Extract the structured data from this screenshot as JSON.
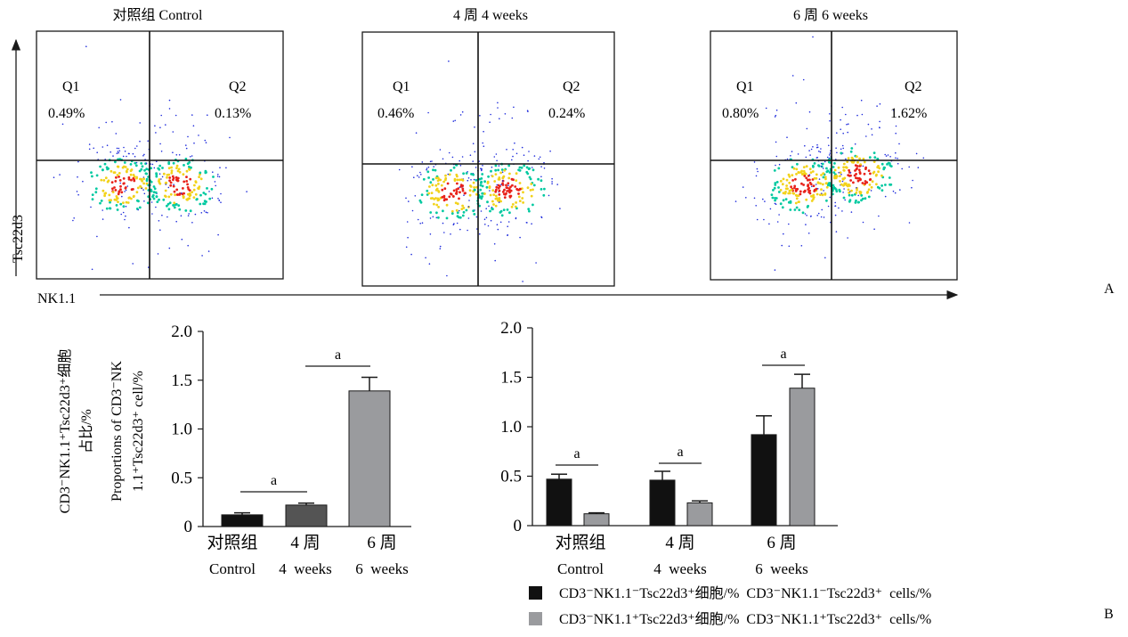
{
  "panel_labels": {
    "a": "A",
    "b": "B"
  },
  "colors": {
    "series_minus": "#111111",
    "series_plus": "#9a9b9e",
    "bar_4wk": "#545454",
    "dot_cold": "#1e2bdc",
    "dot_warm": "#00c9a0",
    "dot_hot": "#e8221a"
  },
  "chart_data": [
    {
      "type": "scatter",
      "subtype": "flow-cytometry-density-plots",
      "xlabel": "NK1.1",
      "ylabel": "Tsc22d3",
      "plots": [
        {
          "title": "对照组 Control",
          "q1_label": "Q1",
          "q1_value": "0.49%",
          "q2_label": "Q2",
          "q2_value": "0.13%"
        },
        {
          "title": "4 周 4  weeks",
          "q1_label": "Q1",
          "q1_value": "0.46%",
          "q2_label": "Q2",
          "q2_value": "0.24%"
        },
        {
          "title": "6 周 6  weeks",
          "q1_label": "Q1",
          "q1_value": "0.80%",
          "q2_label": "Q2",
          "q2_value": "1.62%"
        }
      ]
    },
    {
      "type": "bar",
      "ylabel_cn_line1": "CD3⁻NK1.1⁺Tsc22d3⁺细胞",
      "ylabel_cn_line2": "占比/%",
      "ylabel_en_line1": "Proportions of CD3⁻NK",
      "ylabel_en_line2": "1.1⁺Tsc22d3⁺ cell/%",
      "ylim": [
        0,
        2.0
      ],
      "yticks": [
        "0",
        "0.5",
        "1.0",
        "1.5",
        "2.0"
      ],
      "categories_cn": [
        "对照组",
        "4 周",
        "6 周"
      ],
      "categories_en": [
        "Control",
        "4  weeks",
        "6  weeks"
      ],
      "values": [
        0.12,
        0.22,
        1.39
      ],
      "errors": [
        0.02,
        0.02,
        0.14
      ],
      "significance": [
        {
          "from": 0,
          "to": 1,
          "label": "a"
        },
        {
          "from": 1,
          "to": 2,
          "label": "a"
        }
      ]
    },
    {
      "type": "bar",
      "ylim": [
        0,
        2.0
      ],
      "yticks": [
        "0",
        "0.5",
        "1.0",
        "1.5",
        "2.0"
      ],
      "categories_cn": [
        "对照组",
        "4 周",
        "6 周"
      ],
      "categories_en": [
        "Control",
        "4  weeks",
        "6  weeks"
      ],
      "series": [
        {
          "name": "CD3⁻NK1.1⁻Tsc22d3⁺细胞/%  CD3⁻NK1.1⁻Tsc22d3⁺  cells/%",
          "values": [
            0.47,
            0.46,
            0.92
          ],
          "errors": [
            0.05,
            0.09,
            0.19
          ]
        },
        {
          "name": "CD3⁻NK1.1⁺Tsc22d3⁺细胞/%  CD3⁻NK1.1⁺Tsc22d3⁺  cells/%",
          "values": [
            0.12,
            0.23,
            1.39
          ],
          "errors": [
            0.01,
            0.02,
            0.14
          ]
        }
      ],
      "significance": [
        {
          "group": 0,
          "label": "a"
        },
        {
          "group": 1,
          "label": "a"
        },
        {
          "group": 2,
          "label": "a"
        }
      ]
    }
  ]
}
